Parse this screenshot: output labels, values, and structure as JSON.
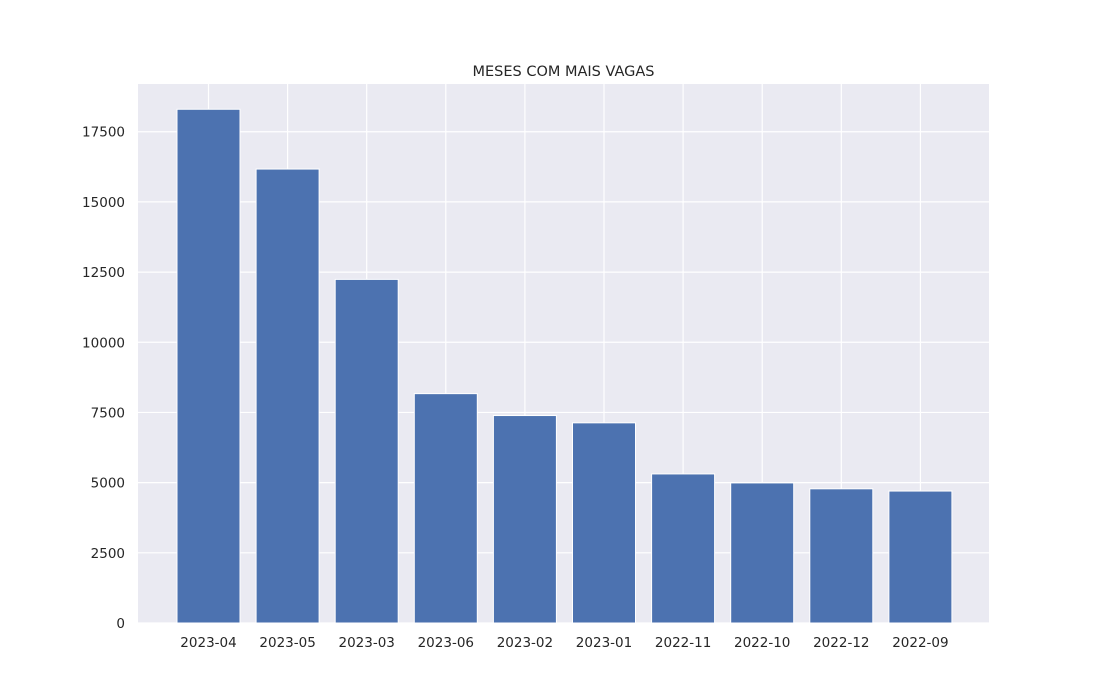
{
  "chart_data": {
    "type": "bar",
    "title": "MESES COM MAIS VAGAS",
    "xlabel": "",
    "ylabel": "",
    "categories": [
      "2023-04",
      "2023-05",
      "2023-03",
      "2023-06",
      "2023-02",
      "2023-01",
      "2022-11",
      "2022-10",
      "2022-12",
      "2022-09"
    ],
    "values": [
      18300,
      16170,
      12240,
      8170,
      7390,
      7130,
      5310,
      4990,
      4780,
      4700
    ],
    "ylim": [
      0,
      19200
    ],
    "yticks": [
      0,
      2500,
      5000,
      7500,
      10000,
      12500,
      15000,
      17500
    ],
    "ytick_labels": [
      "0",
      "2500",
      "5000",
      "7500",
      "10000",
      "12500",
      "15000",
      "17500"
    ],
    "grid": true,
    "colors": {
      "bar": "#4c72b0",
      "plot_background": "#eaeaf2",
      "grid": "#ffffff",
      "text": "#262626"
    }
  }
}
